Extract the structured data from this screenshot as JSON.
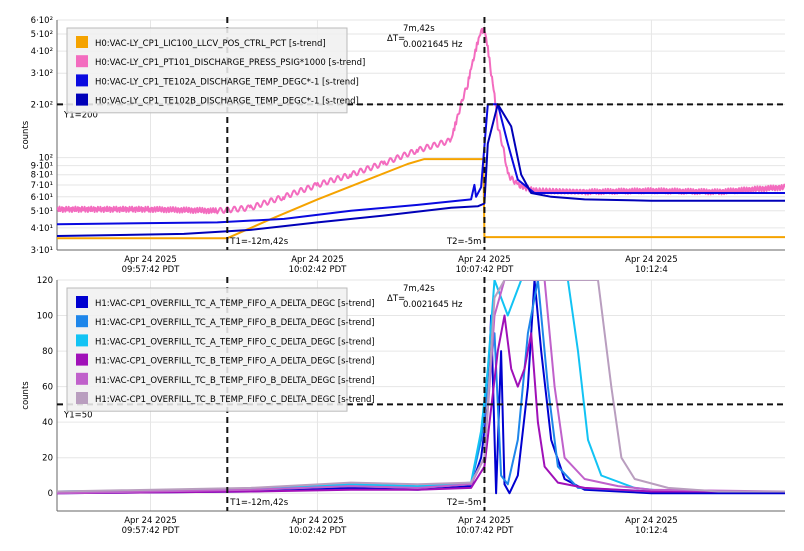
{
  "chart_data": [
    {
      "type": "line",
      "ylabel": "counts",
      "yscale": "log",
      "ylim": [
        30,
        600
      ],
      "yticks": [
        {
          "v": 30,
          "label": "3·10¹"
        },
        {
          "v": 40,
          "label": "4·10¹"
        },
        {
          "v": 50,
          "label": "5·10¹"
        },
        {
          "v": 60,
          "label": "6·10¹"
        },
        {
          "v": 70,
          "label": "7·10¹"
        },
        {
          "v": 80,
          "label": "8·10¹"
        },
        {
          "v": 90,
          "label": "9·10¹"
        },
        {
          "v": 100,
          "label": "10²"
        },
        {
          "v": 200,
          "label": "2·10²"
        },
        {
          "v": 300,
          "label": "3·10²"
        },
        {
          "v": 400,
          "label": "4·10²"
        },
        {
          "v": 500,
          "label": "5·10²"
        },
        {
          "v": 600,
          "label": "6·10²"
        }
      ],
      "xlim": [
        -17.8,
        4.0
      ],
      "xticks": [
        {
          "v": -15,
          "line1": "Apr 24 2025",
          "line2": "09:57:42 PDT"
        },
        {
          "v": -10,
          "line1": "Apr 24 2025",
          "line2": "10:02:42 PDT"
        },
        {
          "v": -5,
          "line1": "Apr 24 2025",
          "line2": "10:07:42 PDT"
        },
        {
          "v": 0,
          "line1": "Apr 24 2025",
          "line2": "10:12:4"
        }
      ],
      "x_units": "minutes relative to 10:12:42 PDT",
      "grid": true,
      "legend_position": "top-left",
      "cursors": {
        "t1": {
          "x": -12.7,
          "label": "T1=-12m,42s"
        },
        "t2": {
          "x": -5,
          "label": "T2=-5m"
        },
        "y1": {
          "y": 200,
          "label": "Y1=200"
        },
        "delta_label": "ΔT=",
        "delta_time": "7m,42s",
        "delta_freq": "0.0021645 Hz"
      },
      "series": [
        {
          "name": "H0:VAC-LY_CP1_LIC100_LLCV_POS_CTRL_PCT [s-trend]",
          "color": "#f5a300",
          "points": [
            [
              -17.8,
              35
            ],
            [
              -12.7,
              35
            ],
            [
              -11.5,
              44
            ],
            [
              -10,
              58
            ],
            [
              -8.5,
              75
            ],
            [
              -7.3,
              92
            ],
            [
              -6.8,
              98
            ],
            [
              -5.03,
              98
            ],
            [
              -5.0,
              35.5
            ],
            [
              4,
              35.5
            ]
          ]
        },
        {
          "name": "H0:VAC-LY_CP1_PT101_DISCHARGE_PRESS_PSIG*1000 [s-trend]",
          "color": "#f36cbf",
          "points": [
            [
              -17.8,
              51
            ],
            [
              -15,
              51
            ],
            [
              -13,
              50
            ],
            [
              -12,
              52
            ],
            [
              -11,
              60
            ],
            [
              -10,
              70
            ],
            [
              -9,
              80
            ],
            [
              -8,
              93
            ],
            [
              -7,
              110
            ],
            [
              -6,
              125
            ],
            [
              -5.8,
              170
            ],
            [
              -5.5,
              260
            ],
            [
              -5.3,
              380
            ],
            [
              -5.1,
              520
            ],
            [
              -5,
              530
            ],
            [
              -4.8,
              300
            ],
            [
              -4.6,
              150
            ],
            [
              -4.3,
              80
            ],
            [
              -4,
              70
            ],
            [
              -3.5,
              65
            ],
            [
              -2,
              64
            ],
            [
              0,
              65
            ],
            [
              2,
              64
            ],
            [
              4,
              68
            ]
          ]
        },
        {
          "name": "H0:VAC-LY_CP1_TE102A_DISCHARGE_TEMP_DEGC*-1 [s-trend]",
          "color": "#0a0ae0",
          "points": [
            [
              -17.8,
              42
            ],
            [
              -13,
              43
            ],
            [
              -11,
              45
            ],
            [
              -9,
              50
            ],
            [
              -7,
              54
            ],
            [
              -5.8,
              57
            ],
            [
              -5.4,
              58
            ],
            [
              -5.3,
              70
            ],
            [
              -5.25,
              60
            ],
            [
              -5.1,
              68
            ],
            [
              -4.9,
              200
            ],
            [
              -4.6,
              200
            ],
            [
              -4.3,
              120
            ],
            [
              -4,
              75
            ],
            [
              -3.5,
              63
            ],
            [
              -2,
              63
            ],
            [
              0,
              63
            ],
            [
              4,
              63
            ]
          ]
        },
        {
          "name": "H0:VAC-LY_CP1_TE102B_DISCHARGE_TEMP_DEGC*-1 [s-trend]",
          "color": "#0000b8",
          "points": [
            [
              -17.8,
              36
            ],
            [
              -14,
              37
            ],
            [
              -12,
              39
            ],
            [
              -10,
              43
            ],
            [
              -8,
              47
            ],
            [
              -6,
              52
            ],
            [
              -5.2,
              53
            ],
            [
              -5,
              55
            ],
            [
              -4.9,
              120
            ],
            [
              -4.6,
              200
            ],
            [
              -4.2,
              150
            ],
            [
              -3.9,
              80
            ],
            [
              -3.6,
              63
            ],
            [
              -3,
              60
            ],
            [
              -2,
              58
            ],
            [
              0,
              57
            ],
            [
              4,
              57
            ]
          ]
        }
      ]
    },
    {
      "type": "line",
      "ylabel": "counts",
      "ylim": [
        -10,
        120
      ],
      "yticks": [
        {
          "v": 0,
          "label": "0"
        },
        {
          "v": 20,
          "label": "20"
        },
        {
          "v": 40,
          "label": "40"
        },
        {
          "v": 60,
          "label": "60"
        },
        {
          "v": 80,
          "label": "80"
        },
        {
          "v": 100,
          "label": "100"
        },
        {
          "v": 120,
          "label": "120"
        }
      ],
      "xlim": [
        -17.8,
        4.0
      ],
      "xticks": [
        {
          "v": -15,
          "line1": "Apr 24 2025",
          "line2": "09:57:42 PDT"
        },
        {
          "v": -10,
          "line1": "Apr 24 2025",
          "line2": "10:02:42 PDT"
        },
        {
          "v": -5,
          "line1": "Apr 24 2025",
          "line2": "10:07:42 PDT"
        },
        {
          "v": 0,
          "line1": "Apr 24 2025",
          "line2": "10:12:4"
        }
      ],
      "x_units": "minutes relative to 10:12:42 PDT",
      "grid": true,
      "legend_position": "top-left",
      "cursors": {
        "t1": {
          "x": -12.7,
          "label": "T1=-12m,42s"
        },
        "t2": {
          "x": -5,
          "label": "T2=-5m"
        },
        "y1": {
          "y": 50,
          "label": "Y1=50"
        },
        "delta_label": "ΔT=",
        "delta_time": "7m,42s",
        "delta_freq": "0.0021645 Hz"
      },
      "series": [
        {
          "name": "H1:VAC-CP1_OVERFILL_TC_A_TEMP_FIFO_A_DELTA_DEGC [s-trend]",
          "color": "#0000d0",
          "points": [
            [
              -17.8,
              0
            ],
            [
              -12,
              1
            ],
            [
              -9,
              3
            ],
            [
              -7,
              2
            ],
            [
              -5.4,
              4
            ],
            [
              -5.1,
              20
            ],
            [
              -4.9,
              50
            ],
            [
              -4.8,
              100
            ],
            [
              -4.65,
              0
            ],
            [
              -4.5,
              80
            ],
            [
              -4.4,
              5
            ],
            [
              -4.25,
              0
            ],
            [
              -4.0,
              10
            ],
            [
              -3.7,
              60
            ],
            [
              -3.5,
              120
            ],
            [
              -3.3,
              80
            ],
            [
              -3.0,
              30
            ],
            [
              -2.6,
              8
            ],
            [
              -2,
              2
            ],
            [
              0,
              0
            ],
            [
              4,
              0
            ]
          ]
        },
        {
          "name": "H1:VAC-CP1_OVERFILL_TC_A_TEMP_FIFO_B_DELTA_DEGC [s-trend]",
          "color": "#1e86ea",
          "points": [
            [
              -17.8,
              1
            ],
            [
              -12,
              2
            ],
            [
              -9,
              4
            ],
            [
              -7,
              3
            ],
            [
              -5.4,
              5
            ],
            [
              -5.1,
              30
            ],
            [
              -4.9,
              60
            ],
            [
              -4.7,
              90
            ],
            [
              -4.5,
              10
            ],
            [
              -4.3,
              5
            ],
            [
              -4.0,
              30
            ],
            [
              -3.7,
              90
            ],
            [
              -3.4,
              120
            ],
            [
              -3.1,
              60
            ],
            [
              -2.8,
              15
            ],
            [
              -2.2,
              3
            ],
            [
              0,
              1
            ],
            [
              4,
              1
            ]
          ]
        },
        {
          "name": "H1:VAC-CP1_OVERFILL_TC_A_TEMP_FIFO_C_DELTA_DEGC [s-trend]",
          "color": "#12c3f4",
          "points": [
            [
              -17.8,
              1
            ],
            [
              -12,
              2
            ],
            [
              -9,
              5
            ],
            [
              -7,
              4
            ],
            [
              -5.4,
              6
            ],
            [
              -5.1,
              35
            ],
            [
              -4.9,
              70
            ],
            [
              -4.7,
              120
            ],
            [
              -4.3,
              100
            ],
            [
              -3.9,
              120
            ],
            [
              -2.5,
              120
            ],
            [
              -2.2,
              80
            ],
            [
              -1.9,
              30
            ],
            [
              -1.5,
              10
            ],
            [
              -0.5,
              3
            ],
            [
              0.5,
              1
            ],
            [
              4,
              1
            ]
          ]
        },
        {
          "name": "H1:VAC-CP1_OVERFILL_TC_B_TEMP_FIFO_A_DELTA_DEGC [s-trend]",
          "color": "#a010b8",
          "points": [
            [
              -17.8,
              0
            ],
            [
              -12,
              1
            ],
            [
              -9,
              2
            ],
            [
              -7,
              2
            ],
            [
              -5.4,
              3
            ],
            [
              -5.0,
              15
            ],
            [
              -4.6,
              80
            ],
            [
              -4.4,
              100
            ],
            [
              -4.2,
              70
            ],
            [
              -4.0,
              60
            ],
            [
              -3.8,
              70
            ],
            [
              -3.6,
              90
            ],
            [
              -3.4,
              40
            ],
            [
              -3.2,
              15
            ],
            [
              -2.8,
              6
            ],
            [
              -2,
              3
            ],
            [
              -1,
              2
            ],
            [
              0,
              1
            ],
            [
              4,
              1
            ]
          ]
        },
        {
          "name": "H1:VAC-CP1_OVERFILL_TC_B_TEMP_FIFO_B_DELTA_DEGC [s-trend]",
          "color": "#c061cb",
          "points": [
            [
              -17.8,
              0
            ],
            [
              -12,
              2
            ],
            [
              -9,
              4
            ],
            [
              -7,
              3
            ],
            [
              -5.4,
              5
            ],
            [
              -5.0,
              20
            ],
            [
              -4.7,
              100
            ],
            [
              -4.4,
              120
            ],
            [
              -3.5,
              120
            ],
            [
              -3.2,
              120
            ],
            [
              -2.9,
              60
            ],
            [
              -2.6,
              20
            ],
            [
              -2,
              8
            ],
            [
              -1,
              4
            ],
            [
              0,
              2
            ],
            [
              4,
              1
            ]
          ]
        },
        {
          "name": "H1:VAC-CP1_OVERFILL_TC_B_TEMP_FIFO_C_DELTA_DEGC [s-trend]",
          "color": "#b99ebf",
          "points": [
            [
              -17.8,
              1
            ],
            [
              -12,
              3
            ],
            [
              -9,
              6
            ],
            [
              -7,
              5
            ],
            [
              -5.4,
              6
            ],
            [
              -5.0,
              20
            ],
            [
              -4.7,
              110
            ],
            [
              -4.4,
              120
            ],
            [
              -2.0,
              120
            ],
            [
              -1.6,
              120
            ],
            [
              -1.2,
              60
            ],
            [
              -0.9,
              20
            ],
            [
              -0.5,
              8
            ],
            [
              0.5,
              3
            ],
            [
              2,
              1
            ],
            [
              4,
              1
            ]
          ]
        }
      ]
    }
  ]
}
